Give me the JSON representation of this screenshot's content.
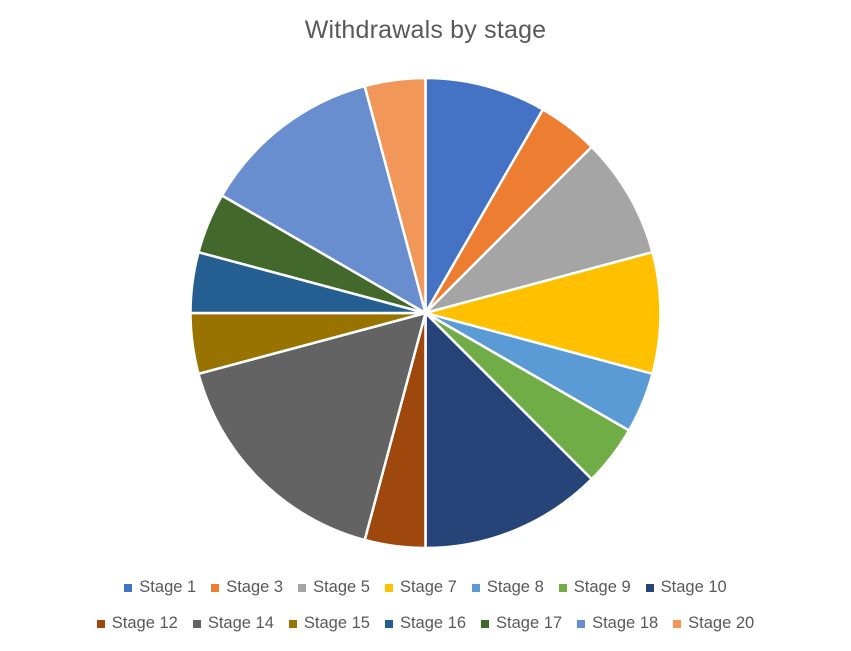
{
  "chart_data": {
    "type": "pie",
    "title": "Withdrawals by stage",
    "categories": [
      "Stage 1",
      "Stage 3",
      "Stage 5",
      "Stage 7",
      "Stage 8",
      "Stage 9",
      "Stage 10",
      "Stage 12",
      "Stage 14",
      "Stage 15",
      "Stage 16",
      "Stage 17",
      "Stage 18",
      "Stage 20"
    ],
    "values": [
      2,
      1,
      2,
      2,
      1,
      1,
      3,
      1,
      4,
      1,
      1,
      1,
      3,
      1
    ],
    "colors": [
      "#4472C4",
      "#ED7D31",
      "#A5A5A5",
      "#FFC000",
      "#5B9BD5",
      "#70AD47",
      "#264478",
      "#9E480E",
      "#636363",
      "#997300",
      "#255E91",
      "#43682B",
      "#698ED0",
      "#F1975A"
    ],
    "start_angle_deg": 0,
    "direction": "clockwise",
    "legend_position": "bottom",
    "legend_rows": [
      [
        "Stage 1",
        "Stage 3",
        "Stage 5",
        "Stage 7",
        "Stage 8",
        "Stage 9",
        "Stage 10"
      ],
      [
        "Stage 12",
        "Stage 14",
        "Stage 15",
        "Stage 16",
        "Stage 17",
        "Stage 18",
        "Stage 20"
      ]
    ]
  }
}
